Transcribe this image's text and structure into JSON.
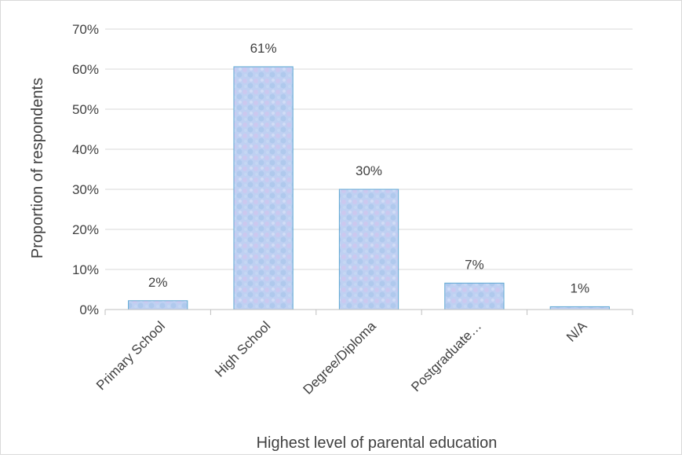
{
  "chart_data": {
    "type": "bar",
    "title": "",
    "xlabel": "Highest level of parental education",
    "ylabel": "Proportion of respondents",
    "categories": [
      "Primary School",
      "High School",
      "Degree/Diploma",
      "Postgraduate…",
      "N/A"
    ],
    "values": [
      2.2,
      60.6,
      30.0,
      6.6,
      0.7
    ],
    "data_labels": [
      "2%",
      "61%",
      "30%",
      "7%",
      "1%"
    ],
    "ylim": [
      0,
      70
    ],
    "yticks": [
      0,
      10,
      20,
      30,
      40,
      50,
      60,
      70
    ],
    "ytick_labels": [
      "0%",
      "10%",
      "20%",
      "30%",
      "40%",
      "50%",
      "60%",
      "70%"
    ],
    "grid": true,
    "legend": "none",
    "colors": {
      "bar_fill": "#b9ccf0",
      "bar_fill_alt": "#d3c8ef",
      "bar_stroke": "#5fa8d3",
      "grid": "#d9d9d9",
      "axis": "#bfbfbf",
      "text": "#404040"
    }
  }
}
